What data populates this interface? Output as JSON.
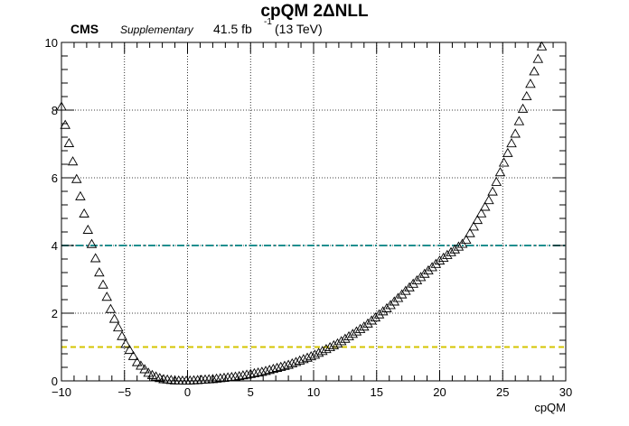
{
  "header": {
    "title": "cpQM 2ΔNLL",
    "experiment": "CMS",
    "tag": "Supplementary",
    "lumi_value": "41.5 fb",
    "lumi_exp": "-1",
    "energy": "(13 TeV)"
  },
  "chart_data": {
    "type": "scatter",
    "title": "cpQM 2ΔNLL",
    "xlabel": "cpQM",
    "ylabel": "",
    "xlim": [
      -10,
      30
    ],
    "ylim": [
      0,
      10
    ],
    "xticks": [
      "−10",
      "−5",
      "0",
      "5",
      "10",
      "15",
      "20",
      "25",
      "30"
    ],
    "yticks": [
      "0",
      "2",
      "4",
      "6",
      "8",
      "10"
    ],
    "grid": true,
    "marker": "open-triangle",
    "marker_color": "#000000",
    "curve_points": [
      [
        -10.0,
        8.1
      ],
      [
        -9.0,
        6.3
      ],
      [
        -8.0,
        4.6
      ],
      [
        -7.0,
        3.2
      ],
      [
        -6.0,
        2.0
      ],
      [
        -5.0,
        1.15
      ],
      [
        -4.0,
        0.55
      ],
      [
        -3.0,
        0.2
      ],
      [
        -2.0,
        0.05
      ],
      [
        -1.0,
        0.01
      ],
      [
        0.0,
        0.0
      ],
      [
        2.0,
        0.05
      ],
      [
        4.0,
        0.13
      ],
      [
        6.0,
        0.27
      ],
      [
        8.0,
        0.47
      ],
      [
        10.0,
        0.75
      ],
      [
        12.0,
        1.12
      ],
      [
        14.0,
        1.6
      ],
      [
        16.0,
        2.2
      ],
      [
        18.0,
        2.9
      ],
      [
        20.0,
        3.55
      ],
      [
        22.0,
        4.1
      ],
      [
        24.0,
        5.4
      ],
      [
        26.0,
        7.3
      ],
      [
        28.2,
        10.0
      ]
    ],
    "reference_lines": [
      {
        "y": 4,
        "color": "#1f8f8f",
        "style": "dash-dot"
      },
      {
        "y": 1,
        "color": "#d4c400",
        "style": "dashed"
      }
    ]
  }
}
